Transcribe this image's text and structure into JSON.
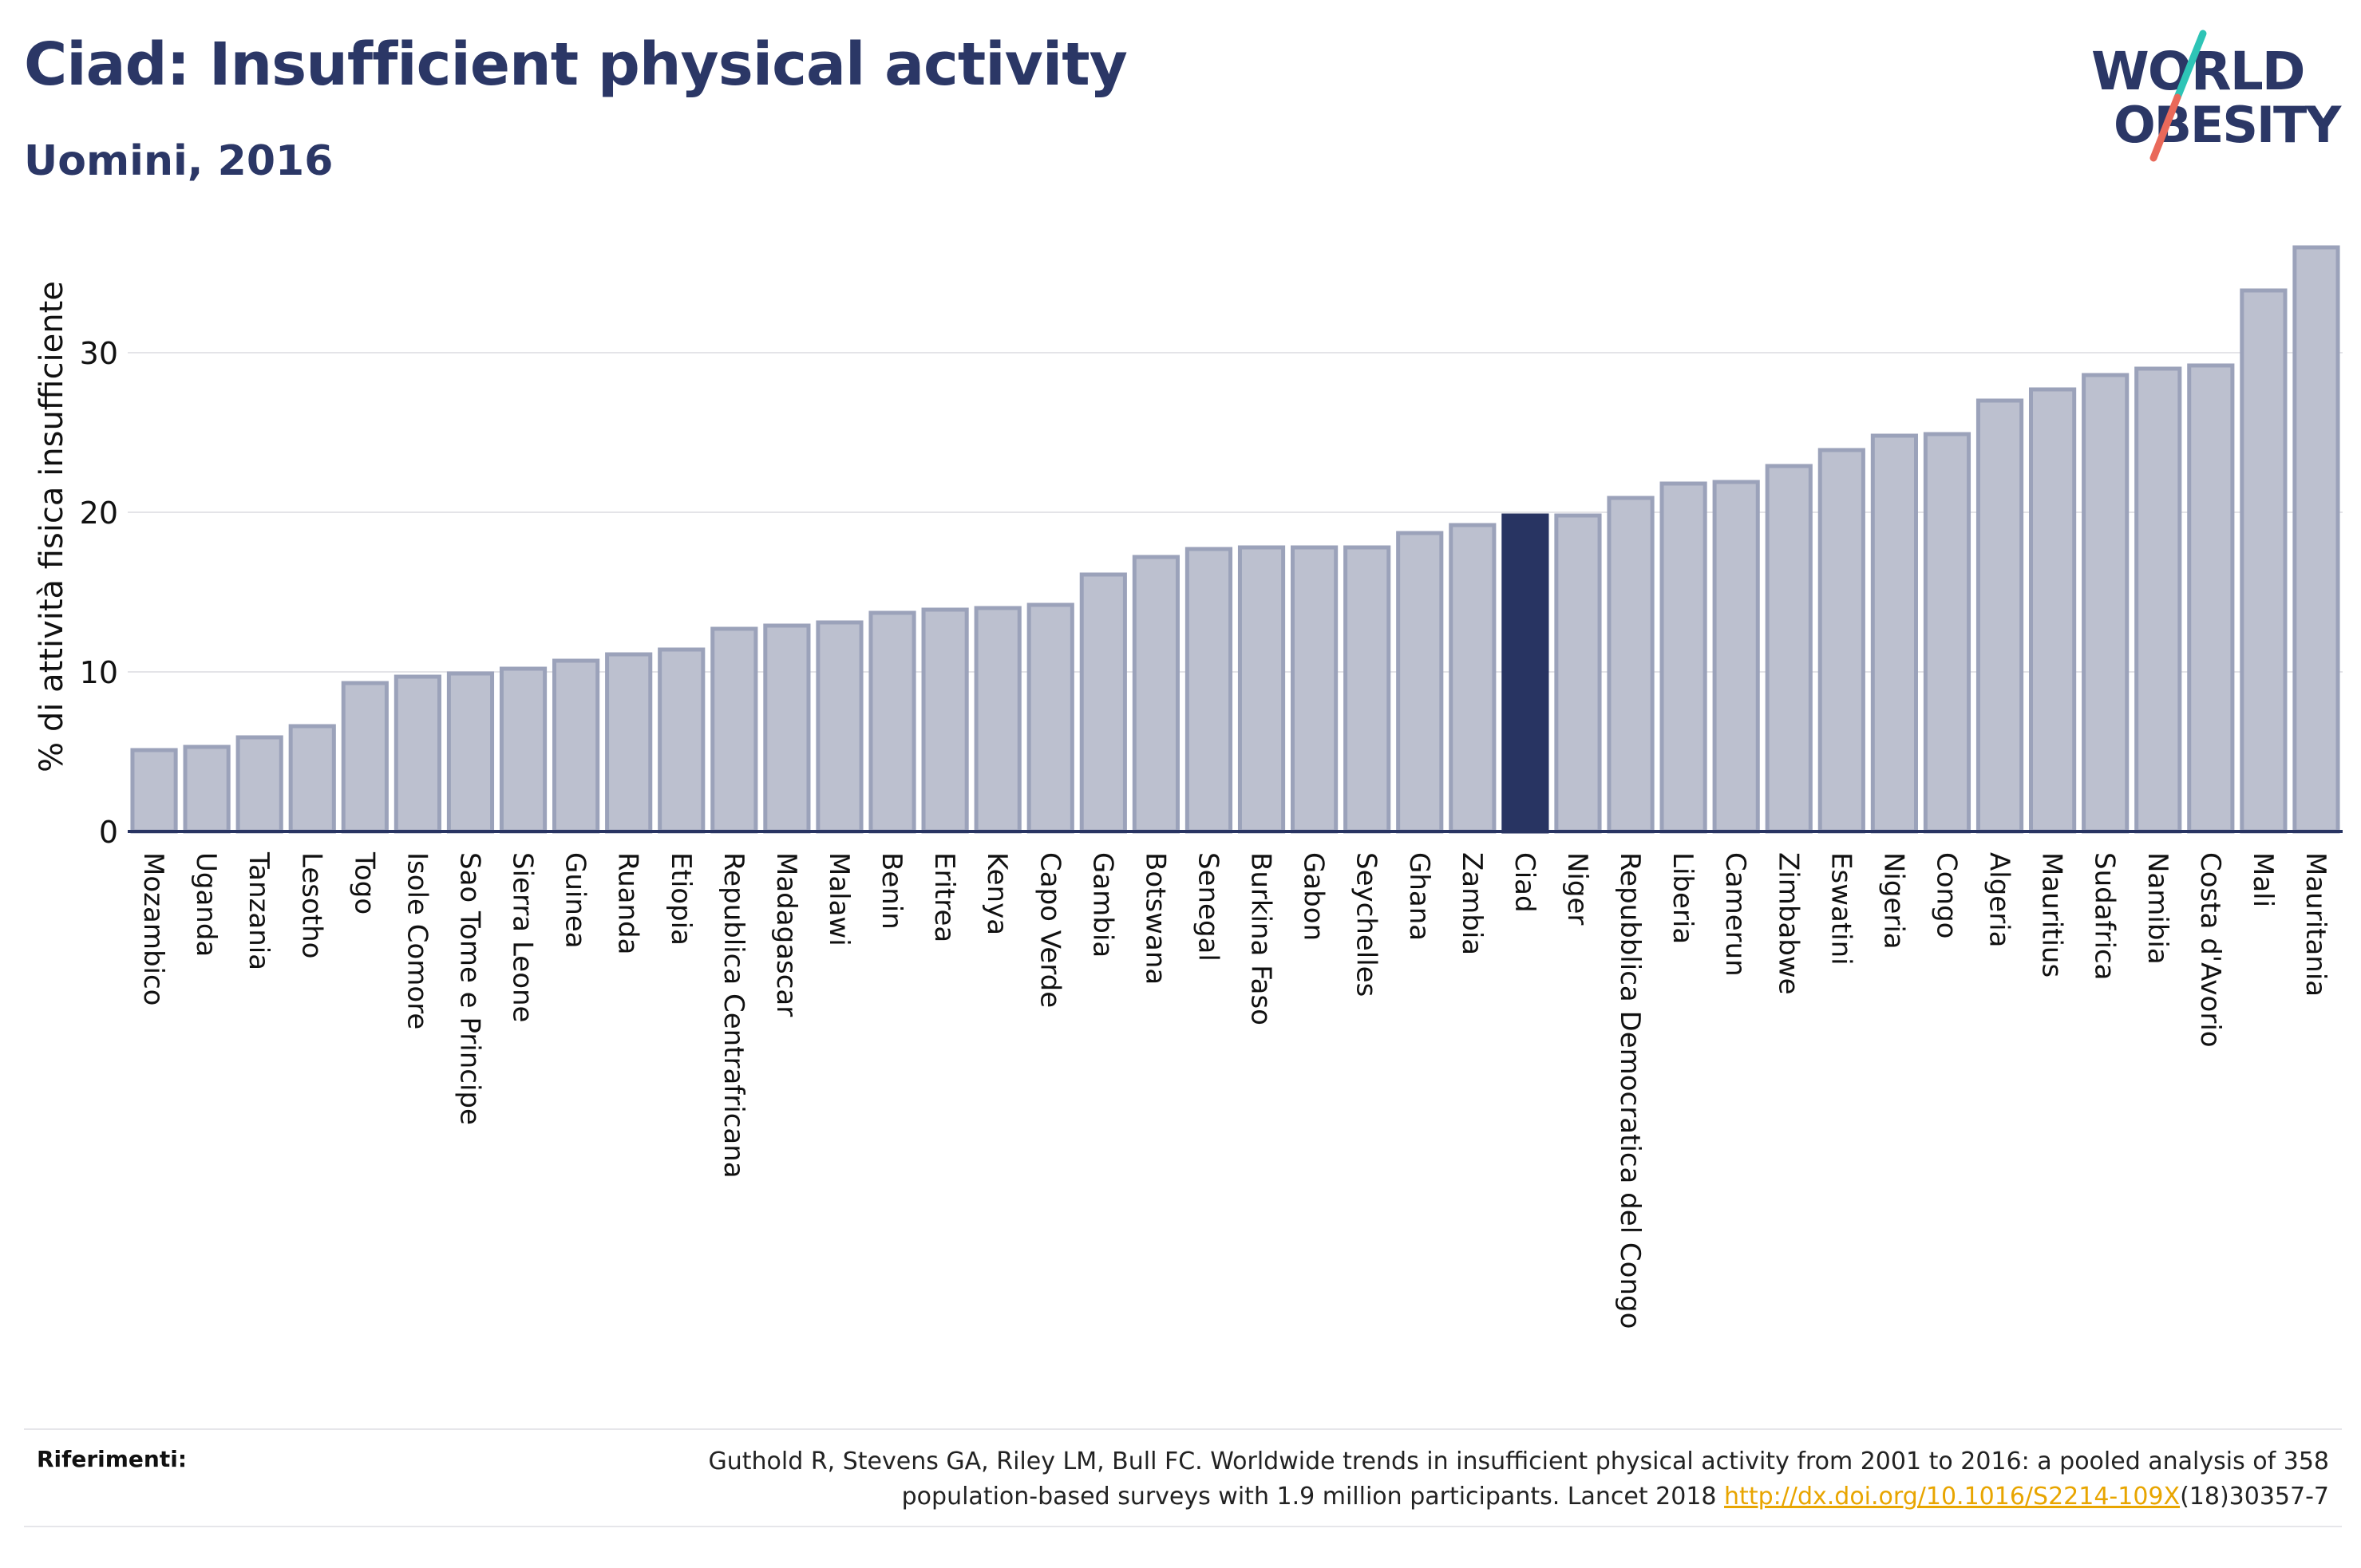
{
  "title": "Ciad: Insufficient physical activity",
  "subtitle": "Uomini, 2016",
  "logo": {
    "line1": "WORLD",
    "line2": "OBESITY",
    "colors": {
      "text": "#2b3766",
      "slash_top": "#2ec4b6",
      "slash_bottom": "#e9695a"
    }
  },
  "colors": {
    "bar": "#bcc0cf",
    "bar_border": "#9ba2ba",
    "highlight": "#283462",
    "axis": "#283462",
    "grid": "#e4e4e8"
  },
  "chart_data": {
    "type": "bar",
    "ylabel": "% di attività fisica insufficiente",
    "ylim": [
      0,
      37.5
    ],
    "yticks": [
      0,
      10,
      20,
      30
    ],
    "grid": true,
    "highlight": "Ciad",
    "categories": [
      "Mozambico",
      "Uganda",
      "Tanzania",
      "Lesotho",
      "Togo",
      "Isole Comore",
      "Sao Tome e Principe",
      "Sierra Leone",
      "Guinea",
      "Ruanda",
      "Etiopia",
      "Republica Centrafricana",
      "Madagascar",
      "Malawi",
      "Benin",
      "Eritrea",
      "Kenya",
      "Capo Verde",
      "Gambia",
      "Botswana",
      "Senegal",
      "Burkina Faso",
      "Gabon",
      "Seychelles",
      "Ghana",
      "Zambia",
      "Ciad",
      "Niger",
      "Repubblica Democratica del Congo",
      "Liberia",
      "Camerun",
      "Zimbabwe",
      "Eswatini",
      "Nigeria",
      "Congo",
      "Algeria",
      "Mauritius",
      "Sudafrica",
      "Namibia",
      "Costa d'Avorio",
      "Mali",
      "Mauritania"
    ],
    "values": [
      5.1,
      5.3,
      5.9,
      6.6,
      9.3,
      9.7,
      9.9,
      10.2,
      10.7,
      11.1,
      11.4,
      12.7,
      12.9,
      13.1,
      13.7,
      13.9,
      14.0,
      14.2,
      16.1,
      17.2,
      17.7,
      17.8,
      17.8,
      17.8,
      18.7,
      19.2,
      19.8,
      19.8,
      20.9,
      21.8,
      21.9,
      22.9,
      23.9,
      24.8,
      24.9,
      27.0,
      27.7,
      28.6,
      29.0,
      29.2,
      33.9,
      36.6
    ]
  },
  "references": {
    "label": "Riferimenti:",
    "line1": "Guthold R, Stevens GA, Riley LM, Bull FC. Worldwide trends in insufficient physical activity from 2001 to 2016: a pooled analysis of 358",
    "line2_prefix": "population-based surveys with 1.9 million participants. Lancet 2018 ",
    "link": "http://dx.doi.org/10.1016/S2214-109X",
    "line2_suffix": "(18)30357-7"
  }
}
